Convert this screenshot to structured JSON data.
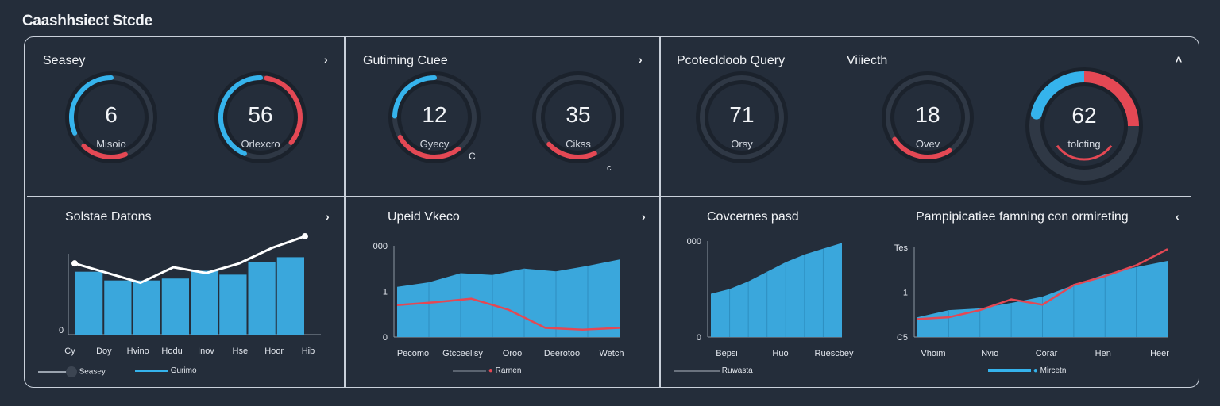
{
  "app": {
    "title": "Caashhsiect Stcde"
  },
  "panels": {
    "p1": {
      "title": "Seasey"
    },
    "p2": {
      "title": "Gutiming Cuee"
    },
    "p3": {
      "title": "Pcotecldoob Query",
      "subtitle": "Viiiecth"
    },
    "p4": {
      "title": "Solstae Datons"
    },
    "p5": {
      "title": "Upeid Vkeco"
    },
    "p6": {
      "title": "Covcernes pasd"
    },
    "p7": {
      "title": "Pampipicatiee famning con ormireting"
    }
  },
  "gauges": [
    {
      "value": "6",
      "label": "Misoio",
      "blue": 0.45,
      "red": 0.18
    },
    {
      "value": "56",
      "label": "Orlexcro",
      "blue": 0.62,
      "red": 0.18
    },
    {
      "value": "12",
      "label": "Gyecy",
      "blue": 0.35,
      "red": 0.27,
      "extra": "C"
    },
    {
      "value": "35",
      "label": "Cikss",
      "blue": 0.0,
      "red": 0.2,
      "extra": "c"
    },
    {
      "value": "71",
      "label": "Orsy",
      "blue": 0.0,
      "red": 0.0
    },
    {
      "value": "18",
      "label": "Ovev",
      "blue": 0.0,
      "red": 0.25
    },
    {
      "value": "62",
      "label": "tolcting",
      "blue": 0.3,
      "red": 0.25
    }
  ],
  "charts": {
    "c4": {
      "xlabels": [
        "Cy",
        "Doy",
        "Hvino",
        "Hodu",
        "Inov",
        "Hse",
        "Hoor",
        "Hib"
      ],
      "ytick0": "0",
      "legend": [
        "Seasey",
        "Gurimo"
      ],
      "bars": [
        0.65,
        0.56,
        0.56,
        0.58,
        0.66,
        0.62,
        0.75,
        0.8
      ],
      "line": [
        0.72,
        0.62,
        0.52,
        0.68,
        0.62,
        0.72,
        0.88,
        1.0
      ]
    },
    "c5": {
      "xlabels": [
        "Pecomo",
        "Gtcceelisy",
        "Oroo",
        "Deerotoo",
        "Wetch"
      ],
      "yticks": [
        "000",
        "1",
        "0"
      ],
      "legend": [
        "Rarnen"
      ],
      "area": [
        0.55,
        0.6,
        0.7,
        0.68,
        0.75,
        0.72,
        0.78,
        0.85
      ],
      "line": [
        0.35,
        0.38,
        0.42,
        0.3,
        0.1,
        0.08,
        0.1
      ]
    },
    "c6": {
      "xlabels": [
        "Bepsi",
        "Huo",
        "Ruescbey"
      ],
      "yticks": [
        "000",
        "0"
      ],
      "legend": [
        "Ruwasta"
      ],
      "area": [
        0.45,
        0.5,
        0.58,
        0.68,
        0.78,
        0.86,
        0.92,
        0.98
      ]
    },
    "c7": {
      "xlabels": [
        "Vhoim",
        "Nvio",
        "Corar",
        "Hen",
        "Heer"
      ],
      "yticks": [
        "Tes",
        "1",
        "C5"
      ],
      "legend": [
        "Mircetn"
      ],
      "area": [
        0.22,
        0.3,
        0.32,
        0.38,
        0.45,
        0.58,
        0.7,
        0.78,
        0.85
      ],
      "line": [
        0.2,
        0.22,
        0.3,
        0.42,
        0.36,
        0.58,
        0.68,
        0.8,
        0.98
      ]
    }
  },
  "colors": {
    "bg": "#242d3a",
    "blue": "#35b3ec",
    "red": "#e44854",
    "fill": "#3aa7dc",
    "border": "#c9d0da"
  }
}
